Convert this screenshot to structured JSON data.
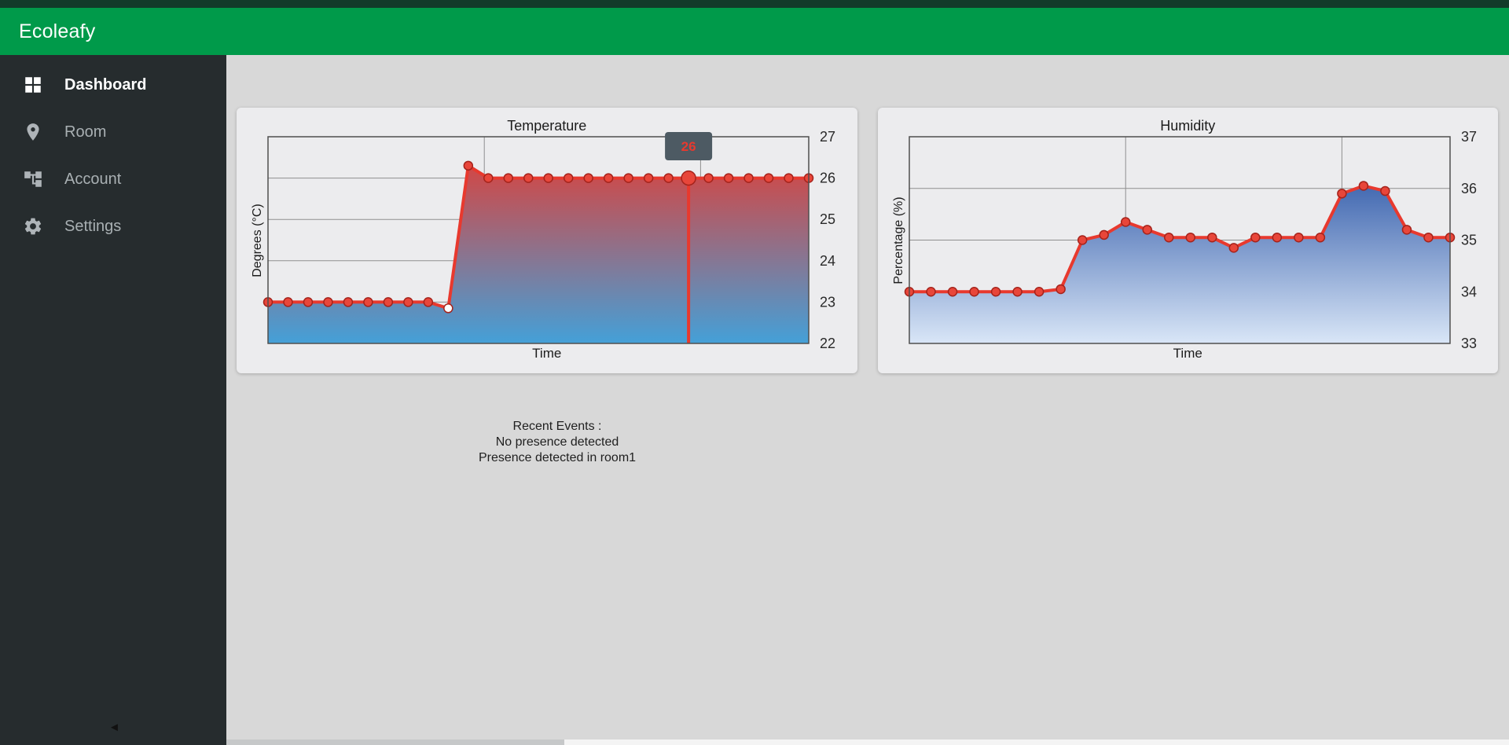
{
  "app": {
    "title": "Ecoleafy"
  },
  "colors": {
    "brand_green": "#009a4a",
    "top_strip": "#123b2a",
    "sidebar_bg": "#262c2e",
    "content_bg": "#d8d8d8",
    "card_bg": "#ececee",
    "chart_red": "#e8392e",
    "humidity_blue": "#15439c"
  },
  "sidebar": {
    "items": [
      {
        "label": "Dashboard",
        "icon": "dashboard-icon",
        "active": true
      },
      {
        "label": "Room",
        "icon": "room-pin-icon",
        "active": false
      },
      {
        "label": "Account",
        "icon": "account-tree-icon",
        "active": false
      },
      {
        "label": "Settings",
        "icon": "settings-gear-icon",
        "active": false
      }
    ],
    "collapse_icon": "◄"
  },
  "events": {
    "title": "Recent Events :",
    "lines": [
      "No presence detected",
      "Presence detected in room1"
    ]
  },
  "chart_data": [
    {
      "type": "line",
      "title": "Temperature",
      "xlabel": "Time",
      "ylabel": "Degrees (°C)",
      "ylim": [
        22,
        27
      ],
      "yticks": [
        27,
        26,
        25,
        24,
        23,
        22
      ],
      "values": [
        23,
        23,
        23,
        23,
        23,
        23,
        23,
        23,
        23,
        22.85,
        26.3,
        26,
        26,
        26,
        26,
        26,
        26,
        26,
        26,
        26,
        26,
        26,
        26,
        26,
        26,
        26,
        26,
        26
      ],
      "hollow_point_index": 9,
      "line_color": "#e8392e",
      "point_color": "#e8463a",
      "gradient": [
        "#e8392e",
        "#44a0d8"
      ],
      "highlight": {
        "index": 21,
        "label": "26",
        "bg": "#4d5a63"
      },
      "grid": true,
      "legend": false
    },
    {
      "type": "line",
      "title": "Humidity",
      "xlabel": "Time",
      "ylabel": "Percentage (%)",
      "ylim": [
        33,
        37
      ],
      "yticks": [
        37,
        36,
        35,
        34,
        33
      ],
      "values": [
        34,
        34,
        34,
        34,
        34,
        34,
        34,
        34.05,
        35,
        35.1,
        35.35,
        35.2,
        35.05,
        35.05,
        35.05,
        34.85,
        35.05,
        35.05,
        35.05,
        35.05,
        35.9,
        36.05,
        35.95,
        35.2,
        35.05,
        35.05
      ],
      "hollow_point_index": null,
      "line_color": "#e8392e",
      "point_color": "#e8463a",
      "gradient": [
        "#15439c",
        "#d9e6f7"
      ],
      "highlight": null,
      "grid": true,
      "legend": false
    }
  ]
}
